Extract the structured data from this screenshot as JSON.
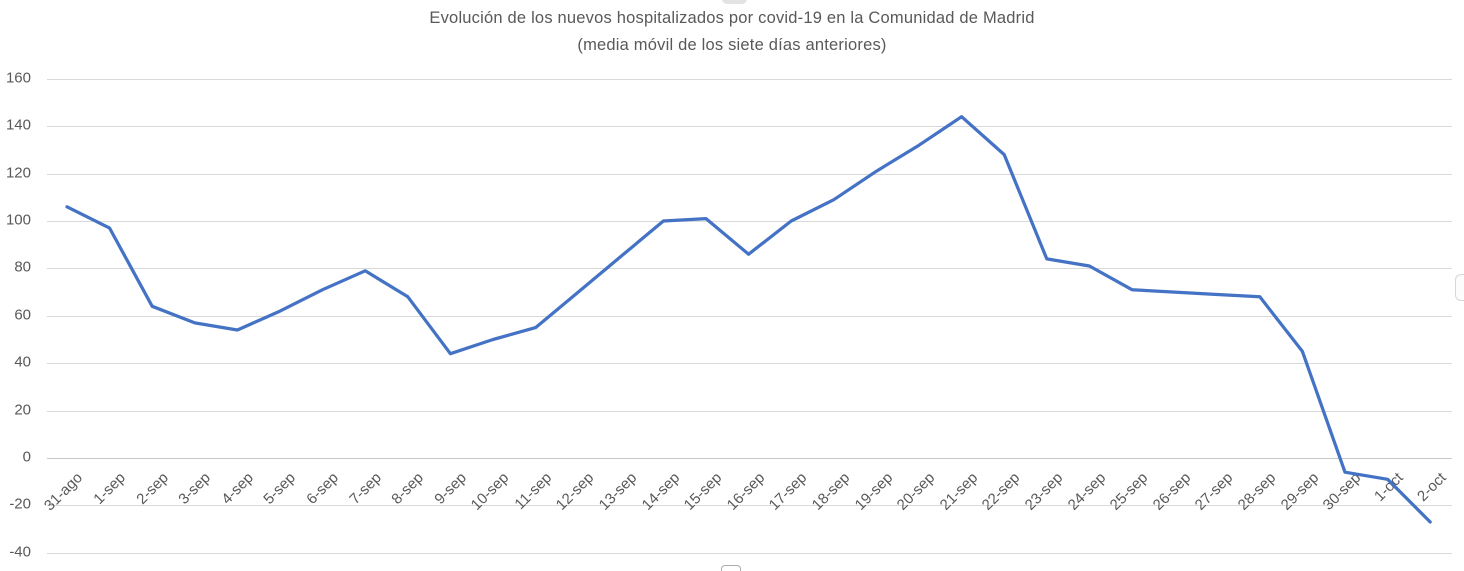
{
  "chart_data": {
    "type": "line",
    "title": "Evolución de los nuevos hospitalizados por covid-19 en la Comunidad de Madrid",
    "subtitle": "(media móvil de los siete días anteriores)",
    "categories": [
      "31-ago",
      "1-sep",
      "2-sep",
      "3-sep",
      "4-sep",
      "5-sep",
      "6-sep",
      "7-sep",
      "8-sep",
      "9-sep",
      "10-sep",
      "11-sep",
      "12-sep",
      "13-sep",
      "14-sep",
      "15-sep",
      "16-sep",
      "17-sep",
      "18-sep",
      "19-sep",
      "20-sep",
      "21-sep",
      "22-sep",
      "23-sep",
      "24-sep",
      "25-sep",
      "26-sep",
      "27-sep",
      "28-sep",
      "29-sep",
      "30-sep",
      "1-oct",
      "2-oct"
    ],
    "values": [
      106,
      97,
      64,
      57,
      54,
      62,
      71,
      79,
      68,
      44,
      50,
      55,
      70,
      85,
      100,
      101,
      86,
      100,
      109,
      121,
      132,
      144,
      128,
      84,
      81,
      71,
      70,
      69,
      68,
      45,
      -6,
      -9,
      -27
    ],
    "yticks": [
      160,
      140,
      120,
      100,
      80,
      60,
      40,
      20,
      0,
      -20,
      -40
    ],
    "ylim": [
      -40,
      160
    ],
    "ytick_step": 20,
    "xlabel": "",
    "ylabel": "",
    "legend": "none",
    "grid": "horizontal",
    "x_label_rotation_deg": 45
  },
  "colors": {
    "line": "#4472C4",
    "gridline": "#D9D9D9",
    "zero_line": "#C8C8C8",
    "text": "#595959",
    "handle_border": "#ABABAB"
  }
}
